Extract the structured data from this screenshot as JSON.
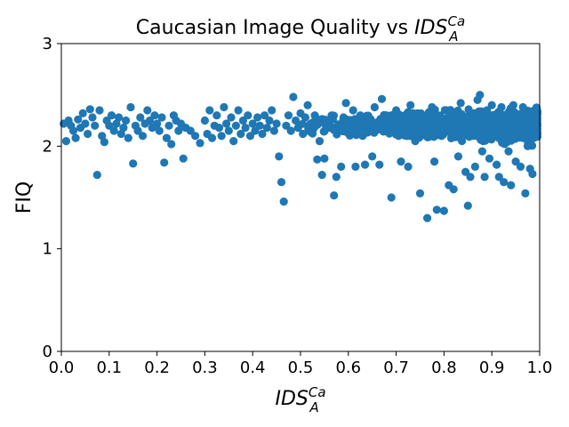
{
  "chart_data": {
    "type": "scatter",
    "title": {
      "prefix": "Caucasian Image Quality vs ",
      "symbol": "IDS",
      "superscript": "Ca",
      "subscript": "A"
    },
    "xlabel": {
      "symbol": "IDS",
      "superscript": "Ca",
      "subscript": "A"
    },
    "ylabel": "FIQ",
    "xlim": [
      0.0,
      1.0
    ],
    "ylim": [
      0,
      3
    ],
    "xticks": [
      0.0,
      0.1,
      0.2,
      0.3,
      0.4,
      0.5,
      0.6,
      0.7,
      0.8,
      0.9,
      1.0
    ],
    "xtick_labels": [
      "0.0",
      "0.1",
      "0.2",
      "0.3",
      "0.4",
      "0.5",
      "0.6",
      "0.7",
      "0.8",
      "0.9",
      "1.0"
    ],
    "yticks": [
      0,
      1,
      2,
      3
    ],
    "ytick_labels": [
      "0",
      "1",
      "2",
      "3"
    ],
    "grid": false,
    "marker_color": "#1f77b4",
    "points": [
      [
        0.005,
        2.22
      ],
      [
        0.01,
        2.05
      ],
      [
        0.015,
        2.25
      ],
      [
        0.02,
        2.2
      ],
      [
        0.025,
        2.15
      ],
      [
        0.03,
        2.08
      ],
      [
        0.035,
        2.26
      ],
      [
        0.04,
        2.18
      ],
      [
        0.045,
        2.32
      ],
      [
        0.05,
        2.22
      ],
      [
        0.055,
        2.12
      ],
      [
        0.06,
        2.36
      ],
      [
        0.065,
        2.28
      ],
      [
        0.07,
        2.2
      ],
      [
        0.075,
        1.72
      ],
      [
        0.08,
        2.35
      ],
      [
        0.085,
        2.1
      ],
      [
        0.09,
        2.04
      ],
      [
        0.095,
        2.25
      ],
      [
        0.1,
        2.2
      ],
      [
        0.105,
        2.3
      ],
      [
        0.11,
        2.15
      ],
      [
        0.115,
        2.22
      ],
      [
        0.12,
        2.28
      ],
      [
        0.125,
        2.12
      ],
      [
        0.13,
        2.18
      ],
      [
        0.135,
        2.25
      ],
      [
        0.14,
        2.08
      ],
      [
        0.145,
        2.38
      ],
      [
        0.15,
        1.83
      ],
      [
        0.155,
        2.2
      ],
      [
        0.16,
        2.15
      ],
      [
        0.165,
        2.28
      ],
      [
        0.17,
        2.1
      ],
      [
        0.175,
        2.22
      ],
      [
        0.18,
        2.35
      ],
      [
        0.185,
        2.25
      ],
      [
        0.19,
        2.18
      ],
      [
        0.195,
        2.3
      ],
      [
        0.2,
        2.22
      ],
      [
        0.205,
        2.15
      ],
      [
        0.21,
        2.28
      ],
      [
        0.215,
        1.84
      ],
      [
        0.22,
        2.08
      ],
      [
        0.225,
        2.2
      ],
      [
        0.23,
        2.02
      ],
      [
        0.235,
        2.3
      ],
      [
        0.24,
        2.25
      ],
      [
        0.245,
        2.15
      ],
      [
        0.25,
        2.22
      ],
      [
        0.255,
        1.88
      ],
      [
        0.26,
        2.18
      ],
      [
        0.27,
        2.15
      ],
      [
        0.28,
        2.1
      ],
      [
        0.29,
        2.03
      ],
      [
        0.3,
        2.25
      ],
      [
        0.305,
        2.12
      ],
      [
        0.31,
        2.35
      ],
      [
        0.315,
        2.08
      ],
      [
        0.32,
        2.2
      ],
      [
        0.325,
        2.3
      ],
      [
        0.33,
        2.18
      ],
      [
        0.335,
        2.1
      ],
      [
        0.34,
        2.38
      ],
      [
        0.345,
        2.22
      ],
      [
        0.35,
        2.15
      ],
      [
        0.355,
        2.28
      ],
      [
        0.36,
        2.05
      ],
      [
        0.365,
        2.2
      ],
      [
        0.37,
        2.35
      ],
      [
        0.375,
        2.12
      ],
      [
        0.38,
        2.25
      ],
      [
        0.385,
        2.18
      ],
      [
        0.39,
        2.3
      ],
      [
        0.395,
        2.1
      ],
      [
        0.4,
        2.22
      ],
      [
        0.405,
        2.15
      ],
      [
        0.41,
        2.28
      ],
      [
        0.415,
        2.2
      ],
      [
        0.42,
        2.12
      ],
      [
        0.425,
        2.3
      ],
      [
        0.43,
        2.18
      ],
      [
        0.435,
        2.25
      ],
      [
        0.44,
        2.35
      ],
      [
        0.445,
        2.15
      ],
      [
        0.45,
        2.22
      ],
      [
        0.455,
        1.9
      ],
      [
        0.46,
        1.65
      ],
      [
        0.465,
        1.46
      ],
      [
        0.47,
        2.2
      ],
      [
        0.475,
        2.3
      ],
      [
        0.48,
        2.15
      ],
      [
        0.485,
        2.48
      ],
      [
        0.49,
        2.25
      ],
      [
        0.495,
        2.18
      ],
      [
        0.5,
        2.32
      ],
      [
        0.505,
        2.12
      ],
      [
        0.51,
        2.28
      ],
      [
        0.515,
        2.4
      ],
      [
        0.52,
        2.2
      ],
      [
        0.525,
        2.15
      ],
      [
        0.53,
        2.3
      ],
      [
        0.535,
        1.87
      ],
      [
        0.54,
        2.05
      ],
      [
        0.545,
        1.72
      ],
      [
        0.55,
        1.88
      ],
      [
        0.555,
        2.25
      ],
      [
        0.56,
        2.18
      ],
      [
        0.565,
        2.3
      ],
      [
        0.57,
        1.52
      ],
      [
        0.575,
        1.7
      ],
      [
        0.58,
        2.2
      ],
      [
        0.585,
        1.8
      ],
      [
        0.59,
        2.28
      ],
      [
        0.595,
        2.42
      ],
      [
        0.6,
        2.15
      ],
      [
        0.605,
        2.25
      ],
      [
        0.61,
        2.35
      ],
      [
        0.615,
        1.8
      ],
      [
        0.62,
        2.2
      ],
      [
        0.625,
        2.3
      ],
      [
        0.63,
        2.1
      ],
      [
        0.635,
        1.82
      ],
      [
        0.64,
        2.28
      ],
      [
        0.645,
        2.18
      ],
      [
        0.65,
        1.9
      ],
      [
        0.655,
        2.38
      ],
      [
        0.66,
        2.22
      ],
      [
        0.665,
        1.82
      ],
      [
        0.67,
        2.46
      ],
      [
        0.675,
        2.15
      ],
      [
        0.68,
        2.3
      ],
      [
        0.685,
        2.2
      ],
      [
        0.69,
        1.5
      ],
      [
        0.695,
        2.25
      ],
      [
        0.7,
        2.35
      ],
      [
        0.705,
        2.1
      ],
      [
        0.71,
        1.85
      ],
      [
        0.715,
        2.28
      ],
      [
        0.72,
        2.18
      ],
      [
        0.725,
        1.8
      ],
      [
        0.73,
        2.4
      ],
      [
        0.735,
        2.22
      ],
      [
        0.74,
        2.05
      ],
      [
        0.745,
        2.32
      ],
      [
        0.75,
        1.54
      ],
      [
        0.755,
        2.15
      ],
      [
        0.76,
        2.28
      ],
      [
        0.765,
        1.3
      ],
      [
        0.77,
        2.2
      ],
      [
        0.775,
        2.38
      ],
      [
        0.78,
        1.85
      ],
      [
        0.785,
        1.38
      ],
      [
        0.79,
        2.25
      ],
      [
        0.795,
        2.1
      ],
      [
        0.8,
        1.37
      ],
      [
        0.805,
        2.35
      ],
      [
        0.81,
        1.62
      ],
      [
        0.815,
        2.18
      ],
      [
        0.82,
        1.58
      ],
      [
        0.825,
        2.3
      ],
      [
        0.83,
        1.9
      ],
      [
        0.835,
        2.42
      ],
      [
        0.84,
        2.15
      ],
      [
        0.845,
        1.75
      ],
      [
        0.85,
        1.42
      ],
      [
        0.855,
        1.7
      ],
      [
        0.86,
        2.28
      ],
      [
        0.865,
        1.8
      ],
      [
        0.87,
        2.45
      ],
      [
        0.875,
        2.5
      ],
      [
        0.88,
        1.95
      ],
      [
        0.885,
        1.7
      ],
      [
        0.89,
        2.35
      ],
      [
        0.895,
        1.88
      ],
      [
        0.9,
        2.4
      ],
      [
        0.905,
        2.2
      ],
      [
        0.91,
        1.82
      ],
      [
        0.915,
        1.7
      ],
      [
        0.92,
        2.38
      ],
      [
        0.925,
        1.65
      ],
      [
        0.93,
        2.3
      ],
      [
        0.935,
        1.95
      ],
      [
        0.94,
        1.62
      ],
      [
        0.945,
        2.4
      ],
      [
        0.95,
        1.85
      ],
      [
        0.955,
        2.15
      ],
      [
        0.96,
        1.8
      ],
      [
        0.965,
        2.38
      ],
      [
        0.97,
        1.54
      ],
      [
        0.975,
        2.0
      ],
      [
        0.98,
        1.78
      ],
      [
        0.985,
        1.73
      ],
      [
        0.99,
        2.32
      ],
      [
        0.995,
        2.2
      ]
    ],
    "dense_band": {
      "x_start": 0.5,
      "x_end": 1.0,
      "y_center": 2.2,
      "y_spread": 0.12
    }
  }
}
